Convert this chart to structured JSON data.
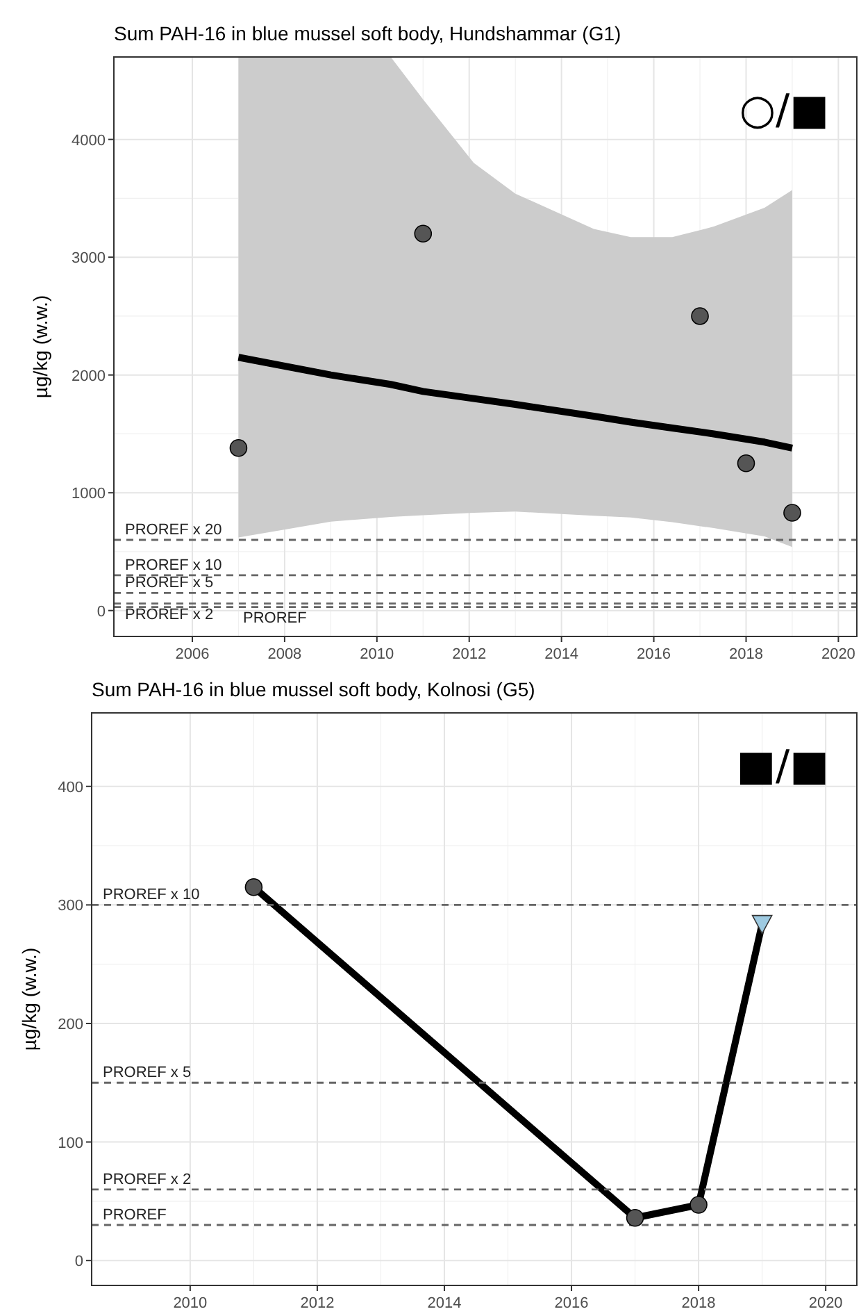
{
  "chart_data": [
    {
      "type": "scatter",
      "title": "Sum PAH-16 in blue mussel soft body, Hundshammar (G1)",
      "ylabel": "µg/kg (w.w.)",
      "xlim": [
        2004.3,
        2020.4
      ],
      "xticks": [
        2006,
        2008,
        2010,
        2012,
        2014,
        2016,
        2018,
        2020
      ],
      "ylim": [
        -220,
        4700
      ],
      "yticks": [
        0,
        1000,
        2000,
        3000,
        4000
      ],
      "grid": true,
      "marker": "circle",
      "series": [
        {
          "type": "line",
          "color": "#000000",
          "marker": "none",
          "x": [
            2007,
            2009,
            2010.3,
            2011,
            2012.1,
            2013,
            2014.7,
            2015.5,
            2016.4,
            2017.3,
            2018.4,
            2019
          ],
          "values": [
            2150,
            2000,
            1920,
            1860,
            1800,
            1750,
            1650,
            1600,
            1550,
            1500,
            1430,
            1380
          ],
          "lower": [
            620,
            755,
            795,
            810,
            830,
            840,
            805,
            790,
            750,
            700,
            630,
            540
          ],
          "upper": [
            4700,
            4700,
            4700,
            4340,
            3800,
            3540,
            3240,
            3170,
            3170,
            3260,
            3420,
            3570
          ]
        },
        {
          "color": "#555555",
          "x": [
            2007,
            2011,
            2017,
            2018,
            2019
          ],
          "values": [
            1380,
            3200,
            2500,
            1250,
            830
          ]
        }
      ],
      "ref_lines": [
        {
          "axis": "y",
          "value": 600,
          "label": "PROREF x 20",
          "color": "#666666",
          "line_style": "dashed"
        },
        {
          "axis": "y",
          "value": 300,
          "label": "PROREF x 10",
          "color": "#666666",
          "line_style": "dashed"
        },
        {
          "axis": "y",
          "value": 150,
          "label": "PROREF x 5",
          "color": "#666666",
          "line_style": "dashed"
        },
        {
          "axis": "y",
          "value": 60,
          "label": "PROREF x 2",
          "color": "#666666",
          "line_style": "dashed"
        },
        {
          "axis": "y",
          "value": 30,
          "label": "PROREF",
          "color": "#666666",
          "line_style": "dashed"
        }
      ],
      "annotations": [
        "○/■"
      ]
    },
    {
      "type": "line",
      "title": "Sum PAH-16 in blue mussel soft body, Kolnosi (G5)",
      "ylabel": "µg/kg (w.w.)",
      "xlim": [
        2008.45,
        2020.49
      ],
      "xticks": [
        2010,
        2012,
        2014,
        2016,
        2018,
        2020
      ],
      "ylim": [
        -21,
        462
      ],
      "yticks": [
        0,
        100,
        200,
        300,
        400
      ],
      "grid": true,
      "marker": "circle",
      "series": [
        {
          "color": "#000000",
          "marker": "none",
          "x": [
            2011,
            2017,
            2018,
            2019
          ],
          "values": [
            315,
            36,
            47,
            284
          ]
        },
        {
          "type": "scatter",
          "color": "#555555",
          "x": [
            2011,
            2017,
            2018
          ],
          "values": [
            315,
            36,
            47
          ]
        },
        {
          "type": "scatter",
          "color": "#9ecae1",
          "marker": "triangle",
          "x": [
            2019
          ],
          "values": [
            284
          ]
        }
      ],
      "ref_lines": [
        {
          "axis": "y",
          "value": 300,
          "label": "PROREF x 10",
          "color": "#666666",
          "line_style": "dashed"
        },
        {
          "axis": "y",
          "value": 150,
          "label": "PROREF x 5",
          "color": "#666666",
          "line_style": "dashed"
        },
        {
          "axis": "y",
          "value": 60,
          "label": "PROREF x 2",
          "color": "#666666",
          "line_style": "dashed"
        },
        {
          "axis": "y",
          "value": 30,
          "label": "PROREF",
          "color": "#666666",
          "line_style": "dashed"
        }
      ],
      "annotations": [
        "■/■"
      ]
    }
  ]
}
